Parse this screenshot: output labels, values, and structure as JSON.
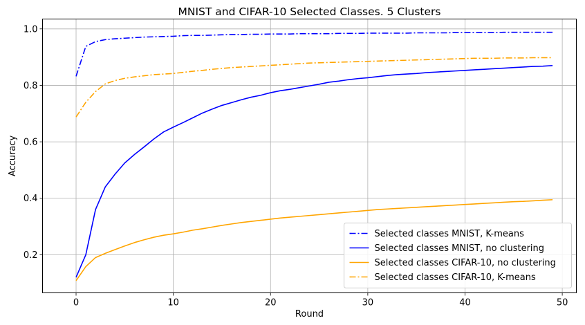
{
  "chart_data": {
    "type": "line",
    "title": "MNIST and CIFAR-10 Selected Classes. 5 Clusters",
    "xlabel": "Round",
    "ylabel": "Accuracy",
    "xlim": [
      -3.45,
      51.45
    ],
    "ylim": [
      0.065,
      1.035
    ],
    "xticks": [
      0,
      10,
      20,
      30,
      40,
      50
    ],
    "yticks": [
      0.2,
      0.4,
      0.6,
      0.8,
      1.0
    ],
    "grid": true,
    "legend_position": "lower right",
    "x": [
      0,
      1,
      2,
      3,
      4,
      5,
      6,
      7,
      8,
      9,
      10,
      11,
      12,
      13,
      14,
      15,
      16,
      17,
      18,
      19,
      20,
      21,
      22,
      23,
      24,
      25,
      26,
      27,
      28,
      29,
      30,
      31,
      32,
      33,
      34,
      35,
      36,
      37,
      38,
      39,
      40,
      41,
      42,
      43,
      44,
      45,
      46,
      47,
      48,
      49
    ],
    "series": [
      {
        "name": "Selected classes MNIST, K-means",
        "color": "#0000ff",
        "dash": "dashdot",
        "values": [
          0.832,
          0.938,
          0.955,
          0.962,
          0.965,
          0.967,
          0.969,
          0.971,
          0.972,
          0.973,
          0.974,
          0.976,
          0.977,
          0.977,
          0.978,
          0.979,
          0.98,
          0.98,
          0.981,
          0.981,
          0.982,
          0.982,
          0.982,
          0.983,
          0.983,
          0.983,
          0.983,
          0.984,
          0.984,
          0.984,
          0.985,
          0.985,
          0.985,
          0.985,
          0.985,
          0.986,
          0.986,
          0.986,
          0.986,
          0.987,
          0.987,
          0.987,
          0.987,
          0.987,
          0.988,
          0.988,
          0.988,
          0.988,
          0.988,
          0.988
        ]
      },
      {
        "name": "Selected classes MNIST, no clustering",
        "color": "#0000ff",
        "dash": "solid",
        "values": [
          0.12,
          0.2,
          0.36,
          0.44,
          0.485,
          0.525,
          0.555,
          0.582,
          0.61,
          0.635,
          0.652,
          0.668,
          0.685,
          0.702,
          0.716,
          0.729,
          0.739,
          0.749,
          0.758,
          0.765,
          0.774,
          0.781,
          0.786,
          0.792,
          0.798,
          0.804,
          0.811,
          0.815,
          0.82,
          0.824,
          0.827,
          0.831,
          0.835,
          0.838,
          0.84,
          0.842,
          0.845,
          0.847,
          0.849,
          0.851,
          0.853,
          0.855,
          0.857,
          0.859,
          0.861,
          0.863,
          0.865,
          0.867,
          0.868,
          0.87
        ]
      },
      {
        "name": "Selected classes CIFAR-10, no clustering",
        "color": "#ffa500",
        "dash": "solid",
        "values": [
          0.108,
          0.158,
          0.19,
          0.205,
          0.218,
          0.231,
          0.243,
          0.253,
          0.262,
          0.269,
          0.274,
          0.28,
          0.287,
          0.292,
          0.298,
          0.304,
          0.309,
          0.314,
          0.318,
          0.322,
          0.326,
          0.33,
          0.333,
          0.336,
          0.339,
          0.342,
          0.345,
          0.348,
          0.351,
          0.354,
          0.357,
          0.36,
          0.362,
          0.364,
          0.366,
          0.368,
          0.37,
          0.372,
          0.374,
          0.376,
          0.378,
          0.38,
          0.382,
          0.384,
          0.386,
          0.388,
          0.389,
          0.391,
          0.393,
          0.395
        ]
      },
      {
        "name": "Selected classes CIFAR-10, K-means",
        "color": "#ffa500",
        "dash": "dashdot",
        "values": [
          0.688,
          0.74,
          0.778,
          0.805,
          0.817,
          0.825,
          0.83,
          0.834,
          0.838,
          0.84,
          0.842,
          0.846,
          0.85,
          0.853,
          0.857,
          0.86,
          0.863,
          0.865,
          0.867,
          0.869,
          0.871,
          0.873,
          0.875,
          0.877,
          0.879,
          0.88,
          0.881,
          0.882,
          0.883,
          0.884,
          0.885,
          0.886,
          0.887,
          0.888,
          0.889,
          0.89,
          0.891,
          0.892,
          0.893,
          0.894,
          0.895,
          0.896,
          0.896,
          0.896,
          0.897,
          0.897,
          0.897,
          0.898,
          0.898,
          0.898
        ]
      }
    ]
  }
}
